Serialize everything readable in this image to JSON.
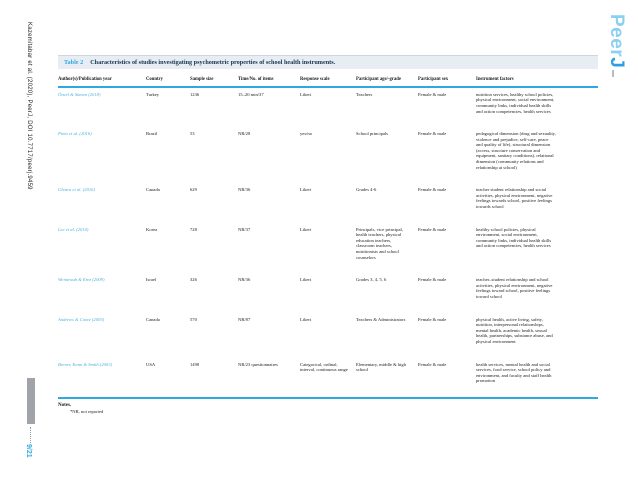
{
  "sidebar": {
    "citation": "Kazemitabar et al. (2020), PeerJ, DOI 10.7717/peerj.9459",
    "page_indicator": "9/21"
  },
  "logo": {
    "light": "Peer",
    "dark": "J"
  },
  "table": {
    "label": "Table 2",
    "title": "Characteristics of studies investigating psychometric properties of school health instruments.",
    "columns": [
      "Author(s)/Publication year",
      "Country",
      "Sample size",
      "Time/No. of items",
      "Response scale",
      "Participant age/-grade",
      "Participant sex",
      "Instrument factors"
    ],
    "rows": [
      [
        "Öncel & Sümen (2018)",
        "Turkey",
        "1236",
        "15–20 min/37",
        "Likert",
        "Teachers",
        "Female & male",
        "nutrition services, healthy school policies, physical environment, social environment, community links, individual health skills and action competencies, health services"
      ],
      [
        "Pinto et al. (2016)",
        "Brazil",
        "53",
        "NR/28",
        "yes/no",
        "School principals",
        "Female & male",
        "pedagogical dimension (drug and sexuality, violence and prejudice, self-care, peace and quality of life), structural dimension (access, structure conservation and equipment, sanitary conditions), relational dimension (community relations and relationship at school)"
      ],
      [
        "Ghotra et al. (2016)",
        "Canada",
        "629",
        "NR/36",
        "Likert",
        "Grades 4-6",
        "Female & male",
        "teacher student relationship and social activities, physical environment, negative feelings towards school, positive feelings towards school"
      ],
      [
        "Lee et al. (2014)",
        "Korea",
        "728",
        "NR/37",
        "Likert",
        "Principals, vice principal, health teachers, physical education teachers, classroom teachers, nutritionists and school counselors",
        "Female & male",
        "healthy school policies, physical environment, social environment, community links, individual health skills and action competencies, health services"
      ],
      [
        "Weintraub & Erez (2009)",
        "Israel",
        "326",
        "NR/36",
        "Likert",
        "Grades 3, 4, 5, 6",
        "Female & male",
        "teacher–student relationship and school activities, physical environment, negative feelings toward school, positive feelings toward school"
      ],
      [
        "Andrews & Conte (2005)",
        "Canada",
        "570",
        "NR/87",
        "Likert",
        "Teachers & Administrators",
        "Female & male",
        "physical health, active living, safety, nutrition, interpersonal relationships, mental health, academic health, sexual health, partnerships, substance abuse, and physical environment"
      ],
      [
        "Brener, Kann & Smith (2003)",
        "USA",
        "1498",
        "NR/23 questionnaires",
        "Categorical, ordinal, interval, continuous range",
        "Elementary, middle & high school",
        "Female & male",
        "health services, mental health and social services, food service, school policy and environment, and faculty and staff health promotion"
      ]
    ]
  },
  "notes": {
    "heading": "Notes.",
    "text": "*NR, not reported"
  },
  "colors": {
    "accent": "#2fa8e1",
    "band_background": "#e7edf3",
    "title": "#16354f",
    "citation_link": "#4aafdc",
    "logo_light": "#8bcff2",
    "logo_dark": "#2b9fe0",
    "gray_bar": "#a0a4a8"
  }
}
